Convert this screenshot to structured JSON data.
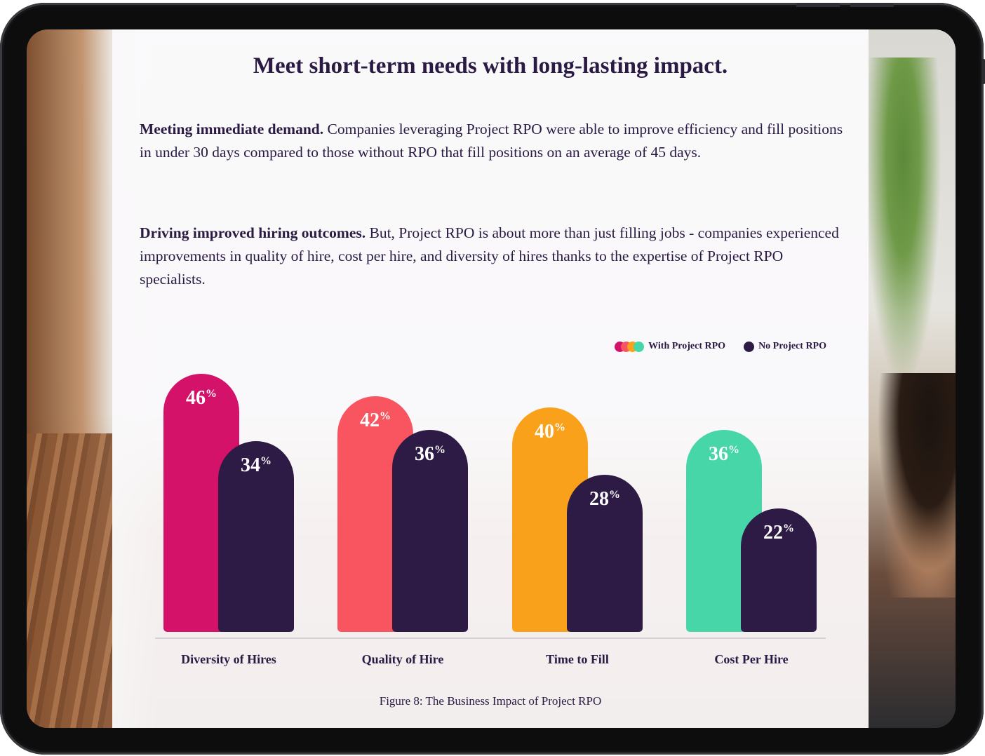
{
  "page": {
    "title": "Meet short-term needs with long-lasting impact.",
    "paragraphs": [
      {
        "lead": "Meeting immediate demand.",
        "body": " Companies leveraging Project RPO were able to improve efficiency and fill positions in under 30 days compared to those without RPO that fill positions on an average of 45 days."
      },
      {
        "lead": "Driving improved hiring outcomes.",
        "body": " But, Project RPO is about more than just filling jobs - companies experienced improvements in quality of hire, cost per hire, and diversity of hires thanks to the expertise of Project RPO specialists."
      }
    ],
    "caption": "Figure 8: The Business Impact of Project RPO"
  },
  "legend": {
    "with_label": "With Project RPO",
    "no_label": "No Project RPO"
  },
  "colors": {
    "with_dots": [
      "#d4126a",
      "#f85560",
      "#f9a11b",
      "#47d6a8"
    ],
    "no_color": "#2d1b45"
  },
  "chart_data": {
    "type": "bar",
    "categories": [
      "Diversity of Hires",
      "Quality of Hire",
      "Time to Fill",
      "Cost Per Hire"
    ],
    "series": [
      {
        "name": "With Project RPO",
        "values": [
          46,
          42,
          40,
          36
        ],
        "colors": [
          "#d4126a",
          "#f85560",
          "#f9a11b",
          "#47d6a8"
        ]
      },
      {
        "name": "No Project RPO",
        "values": [
          34,
          36,
          28,
          22
        ],
        "colors": [
          "#2d1b45",
          "#2d1b45",
          "#2d1b45",
          "#2d1b45"
        ]
      }
    ],
    "value_suffix": "%",
    "title": "",
    "xlabel": "",
    "ylabel": "",
    "grid": false,
    "legend_position": "top-right"
  }
}
